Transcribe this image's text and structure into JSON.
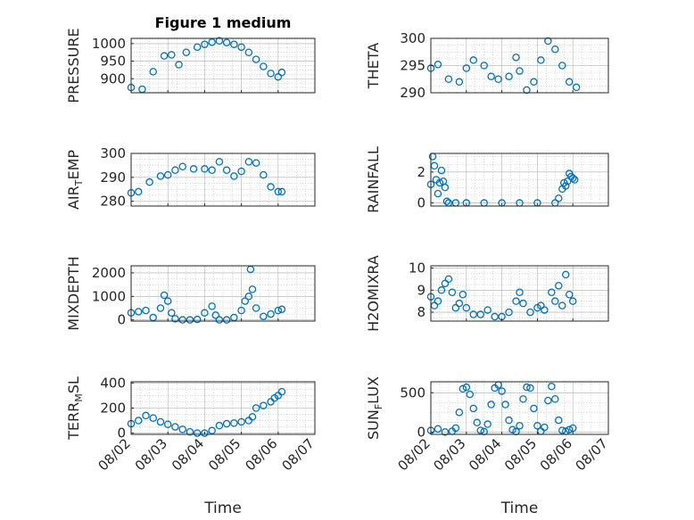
{
  "colors": {
    "marker": "#0072bd",
    "axis": "#262626",
    "grid": "#b0b0b0"
  },
  "chart_data": [
    {
      "type": "scatter",
      "title": "Figure 1 medium",
      "ylabel": "PRESSURE",
      "ylabel_sub": "",
      "ylim": [
        860,
        1015
      ],
      "yticks": [
        900,
        950,
        1000
      ],
      "ytick_labels": [
        "900",
        "950",
        "1000"
      ],
      "xlim": [
        0,
        5
      ],
      "grid": true,
      "series": [
        {
          "x": [
            0.0,
            0.3,
            0.6,
            0.9,
            1.1,
            1.3,
            1.5,
            1.8,
            2.0,
            2.2,
            2.4,
            2.6,
            2.8,
            3.0,
            3.2,
            3.4,
            3.6,
            3.8,
            4.0,
            4.1
          ],
          "values": [
            875,
            870,
            920,
            965,
            968,
            940,
            975,
            990,
            998,
            1004,
            1008,
            1003,
            998,
            990,
            975,
            955,
            935,
            915,
            905,
            918
          ]
        }
      ]
    },
    {
      "type": "scatter",
      "title": "",
      "ylabel": "THETA",
      "ylabel_sub": "",
      "ylim": [
        290,
        300
      ],
      "yticks": [
        290,
        295,
        300
      ],
      "ytick_labels": [
        "290",
        "295",
        "300"
      ],
      "xlim": [
        0,
        5
      ],
      "grid": true,
      "series": [
        {
          "x": [
            0.0,
            0.2,
            0.5,
            0.8,
            1.0,
            1.2,
            1.5,
            1.7,
            1.9,
            2.2,
            2.4,
            2.5,
            2.7,
            2.9,
            3.1,
            3.3,
            3.5,
            3.7,
            3.9,
            4.1
          ],
          "values": [
            294.5,
            295.2,
            292.5,
            292,
            294.5,
            296,
            295,
            293,
            292.5,
            293,
            296.5,
            294,
            290.5,
            292,
            296,
            299.5,
            298,
            295,
            292,
            291
          ]
        }
      ]
    },
    {
      "type": "scatter",
      "title": "",
      "ylabel": "AIR",
      "ylabel_sub": "T",
      "ylabel_tail": "EMP",
      "ylim": [
        278,
        300
      ],
      "yticks": [
        280,
        290,
        300
      ],
      "ytick_labels": [
        "280",
        "290",
        "300"
      ],
      "xlim": [
        0,
        5
      ],
      "grid": true,
      "series": [
        {
          "x": [
            0.0,
            0.2,
            0.5,
            0.8,
            1.0,
            1.2,
            1.4,
            1.7,
            2.0,
            2.2,
            2.4,
            2.6,
            2.8,
            3.0,
            3.2,
            3.4,
            3.6,
            3.8,
            4.0,
            4.1
          ],
          "values": [
            283.5,
            284,
            288,
            290.5,
            291,
            293,
            294.5,
            293.5,
            293.5,
            293,
            296.5,
            293,
            290.5,
            292.5,
            296.5,
            296,
            291,
            286,
            284,
            284
          ]
        }
      ]
    },
    {
      "type": "scatter",
      "title": "",
      "ylabel": "RAINFALL",
      "ylabel_sub": "",
      "ylim": [
        -0.2,
        3.2
      ],
      "yticks": [
        0,
        2
      ],
      "ytick_labels": [
        "0",
        "2"
      ],
      "xlim": [
        0,
        5
      ],
      "grid": true,
      "series": [
        {
          "x": [
            0.0,
            0.05,
            0.1,
            0.15,
            0.2,
            0.25,
            0.3,
            0.35,
            0.4,
            0.45,
            0.5,
            0.7,
            1.0,
            1.5,
            2.0,
            2.5,
            3.0,
            3.5,
            3.6,
            3.7,
            3.75,
            3.8,
            3.85,
            3.9,
            3.95,
            4.0,
            4.05
          ],
          "values": [
            1.2,
            3.0,
            2.4,
            1.5,
            0.6,
            1.3,
            2.1,
            1.4,
            1.0,
            0.1,
            0,
            0,
            0,
            0,
            0,
            0,
            0,
            0,
            0.3,
            0.9,
            1.3,
            1.1,
            1.4,
            1.9,
            1.7,
            1.6,
            1.5
          ]
        }
      ]
    },
    {
      "type": "scatter",
      "title": "",
      "ylabel": "MIXDEPTH",
      "ylabel_sub": "",
      "ylim": [
        -50,
        2300
      ],
      "yticks": [
        0,
        1000,
        2000
      ],
      "ytick_labels": [
        "0",
        "1000",
        "2000"
      ],
      "xlim": [
        0,
        5
      ],
      "grid": true,
      "series": [
        {
          "x": [
            0.0,
            0.2,
            0.4,
            0.6,
            0.8,
            0.9,
            1.0,
            1.1,
            1.2,
            1.4,
            1.6,
            1.8,
            2.0,
            2.2,
            2.3,
            2.4,
            2.6,
            2.8,
            3.0,
            3.1,
            3.2,
            3.25,
            3.3,
            3.4,
            3.6,
            3.8,
            4.0,
            4.1
          ],
          "values": [
            300,
            350,
            400,
            100,
            500,
            1050,
            800,
            300,
            50,
            0,
            0,
            20,
            300,
            580,
            200,
            0,
            0,
            100,
            400,
            800,
            1000,
            2150,
            1300,
            500,
            150,
            250,
            400,
            450
          ]
        }
      ]
    },
    {
      "type": "scatter",
      "title": "",
      "ylabel": "H2OMIXRA",
      "ylabel_sub": "",
      "ylim": [
        7.6,
        10.1
      ],
      "yticks": [
        8,
        9,
        10
      ],
      "ytick_labels": [
        "8",
        "9",
        "10"
      ],
      "xlim": [
        0,
        5
      ],
      "grid": true,
      "series": [
        {
          "x": [
            0.0,
            0.1,
            0.2,
            0.3,
            0.4,
            0.5,
            0.6,
            0.7,
            0.8,
            0.9,
            1.0,
            1.2,
            1.4,
            1.6,
            1.8,
            2.0,
            2.2,
            2.4,
            2.5,
            2.6,
            2.8,
            3.0,
            3.1,
            3.2,
            3.4,
            3.5,
            3.6,
            3.7,
            3.8,
            3.9,
            4.0
          ],
          "values": [
            8.7,
            8.3,
            8.5,
            9.0,
            9.3,
            9.5,
            8.9,
            8.2,
            8.4,
            8.8,
            8.2,
            7.9,
            7.9,
            8.1,
            7.8,
            7.8,
            8.0,
            8.5,
            8.9,
            8.4,
            8.0,
            8.2,
            8.3,
            8.1,
            8.9,
            8.5,
            9.2,
            8.3,
            9.7,
            8.8,
            8.5
          ]
        }
      ]
    },
    {
      "type": "scatter",
      "title": "",
      "ylabel": "TERR",
      "ylabel_sub": "M",
      "ylabel_tail": "SL",
      "ylim": [
        -10,
        410
      ],
      "yticks": [
        0,
        200,
        400
      ],
      "ytick_labels": [
        "0",
        "200",
        "400"
      ],
      "xlim": [
        0,
        5
      ],
      "grid": true,
      "series": [
        {
          "x": [
            0.0,
            0.2,
            0.4,
            0.6,
            0.8,
            1.0,
            1.2,
            1.4,
            1.6,
            1.8,
            2.0,
            2.2,
            2.4,
            2.6,
            2.8,
            3.0,
            3.2,
            3.3,
            3.4,
            3.6,
            3.8,
            3.9,
            4.0,
            4.1
          ],
          "values": [
            75,
            100,
            140,
            120,
            90,
            70,
            50,
            30,
            10,
            0,
            0,
            20,
            60,
            75,
            80,
            90,
            100,
            130,
            200,
            220,
            250,
            280,
            300,
            330
          ]
        }
      ]
    },
    {
      "type": "scatter",
      "title": "",
      "ylabel": "SUN",
      "ylabel_sub": "F",
      "ylabel_tail": "LUX",
      "ylim": [
        -30,
        640
      ],
      "yticks": [
        0,
        500
      ],
      "ytick_labels": [
        "0",
        "500"
      ],
      "xlim": [
        0,
        5
      ],
      "grid": true,
      "series": [
        {
          "x": [
            0.0,
            0.2,
            0.4,
            0.6,
            0.7,
            0.8,
            0.9,
            1.0,
            1.1,
            1.2,
            1.3,
            1.4,
            1.5,
            1.6,
            1.7,
            1.8,
            1.9,
            2.0,
            2.1,
            2.2,
            2.3,
            2.4,
            2.5,
            2.6,
            2.7,
            2.8,
            2.9,
            3.0,
            3.1,
            3.2,
            3.3,
            3.4,
            3.5,
            3.6,
            3.7,
            3.8,
            3.9,
            4.0
          ],
          "values": [
            20,
            40,
            0,
            10,
            50,
            250,
            550,
            570,
            480,
            300,
            120,
            20,
            5,
            100,
            350,
            560,
            600,
            520,
            350,
            150,
            30,
            5,
            80,
            420,
            570,
            560,
            300,
            80,
            10,
            60,
            400,
            580,
            420,
            150,
            20,
            10,
            30,
            50
          ]
        }
      ]
    }
  ],
  "x_axis": {
    "tick_labels": [
      "08/02",
      "08/03",
      "08/04",
      "08/05",
      "08/06",
      "08/07"
    ],
    "label": "Time"
  }
}
